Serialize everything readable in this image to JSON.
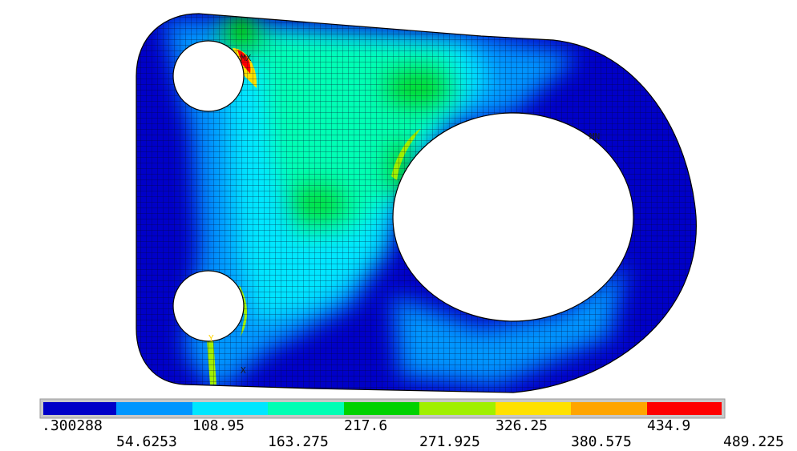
{
  "plot": {
    "markers": [
      {
        "label": "MX",
        "color": "#1a1a1a"
      },
      {
        "label": "MN",
        "color": "#1a1a1a"
      },
      {
        "label": "Y",
        "color": "#ffd400"
      },
      {
        "label": "X",
        "color": "#1a1a1a"
      }
    ]
  },
  "legend": {
    "colors": [
      "#0000c8",
      "#0096ff",
      "#00e6ff",
      "#00ffb4",
      "#00d200",
      "#a0f000",
      "#ffe100",
      "#ffa500",
      "#ff0000"
    ],
    "levels": [
      ".300288",
      "54.6253",
      "108.95",
      "163.275",
      "217.6",
      "271.925",
      "326.25",
      "380.575",
      "434.9",
      "489.225"
    ]
  }
}
